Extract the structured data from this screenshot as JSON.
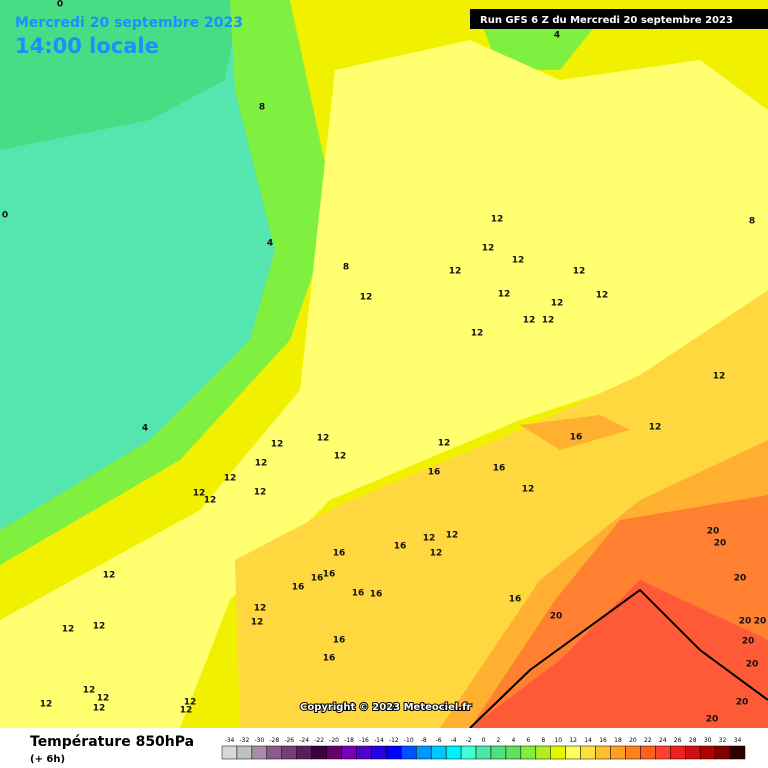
{
  "header": {
    "date": "Mercredi 20 septembre 2023",
    "time": "14:00 locale",
    "run": "Run GFS 6 Z du Mercredi 20 septembre 2023"
  },
  "map": {
    "copyright": "Copyright © 2023 Meteociel.fr",
    "contour_labels": [
      0,
      0,
      4,
      8,
      4,
      8,
      4,
      8,
      12,
      12,
      12,
      12,
      12,
      12,
      12,
      12,
      12,
      12,
      12,
      12,
      12,
      12,
      16,
      12,
      12,
      12,
      12,
      12,
      16,
      12,
      16,
      12,
      12,
      12,
      12,
      16,
      12,
      12,
      12,
      16,
      16,
      16,
      16,
      16,
      16,
      12,
      12,
      12,
      12,
      12,
      16,
      16,
      16,
      20,
      20,
      20,
      20,
      20,
      20,
      20,
      20,
      20,
      20,
      12,
      12,
      12,
      12,
      12,
      12
    ]
  },
  "legend": {
    "title": "Température 850hPa",
    "subtitle": "(+ 6h)",
    "values": [
      -34,
      -32,
      -30,
      -28,
      -26,
      -24,
      -22,
      -20,
      -18,
      -16,
      -14,
      -12,
      -10,
      -8,
      -6,
      -4,
      -2,
      0,
      2,
      4,
      6,
      8,
      10,
      12,
      14,
      16,
      18,
      20,
      22,
      24,
      26,
      28,
      30,
      32,
      34
    ],
    "colors": [
      "#d8d8d8",
      "#c0c0c0",
      "#a88ca8",
      "#8c5a8c",
      "#783c78",
      "#5a1e5a",
      "#3c003c",
      "#64006e",
      "#7800b4",
      "#5000c8",
      "#2800e6",
      "#0000ff",
      "#0050ff",
      "#0096ff",
      "#00c8ff",
      "#00f0ff",
      "#40ffd0",
      "#50e6a8",
      "#50e080",
      "#60e060",
      "#80f040",
      "#b0f020",
      "#e0f800",
      "#ffff60",
      "#ffe040",
      "#ffc030",
      "#ffa020",
      "#ff8020",
      "#ff6020",
      "#ff4030",
      "#f02020",
      "#d01010",
      "#b00000",
      "#800000",
      "#300000"
    ]
  }
}
